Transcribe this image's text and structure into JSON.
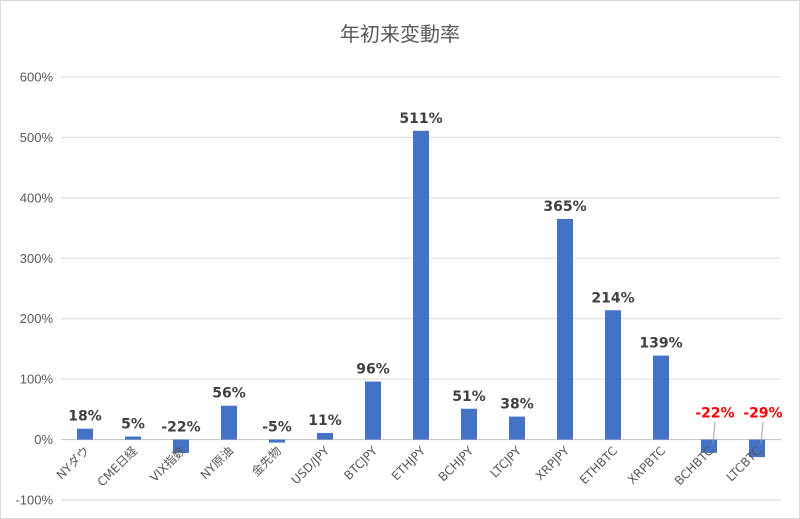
{
  "chart_data": {
    "type": "bar",
    "title": "年初来変動率",
    "xlabel": "",
    "ylabel": "",
    "ylim": [
      -100,
      600
    ],
    "y_ticks": [
      "-100%",
      "0%",
      "100%",
      "200%",
      "300%",
      "400%",
      "500%",
      "600%"
    ],
    "grid": true,
    "legend": "none",
    "bar_color": "#4472c4",
    "label_color": "#404040",
    "highlight_label_color": "#ff0000",
    "categories": [
      "NYダウ",
      "CME日経",
      "VIX指数",
      "NY原油",
      "金先物",
      "USD/JPY",
      "BTCJPY",
      "ETHJPY",
      "BCHJPY",
      "LTCJPY",
      "XRPJPY",
      "ETHBTC",
      "XRPBTC",
      "BCHBTC",
      "LTCBTC"
    ],
    "values": [
      18,
      5,
      -22,
      56,
      -5,
      11,
      96,
      511,
      51,
      38,
      365,
      214,
      139,
      -22,
      -29
    ],
    "labels": [
      "18%",
      "5%",
      "-22%",
      "56%",
      "-5%",
      "11%",
      "96%",
      "511%",
      "51%",
      "38%",
      "365%",
      "214%",
      "139%",
      "-22%",
      "-29%"
    ],
    "highlighted": [
      false,
      false,
      false,
      false,
      false,
      false,
      false,
      false,
      false,
      false,
      false,
      false,
      false,
      true,
      true
    ]
  }
}
